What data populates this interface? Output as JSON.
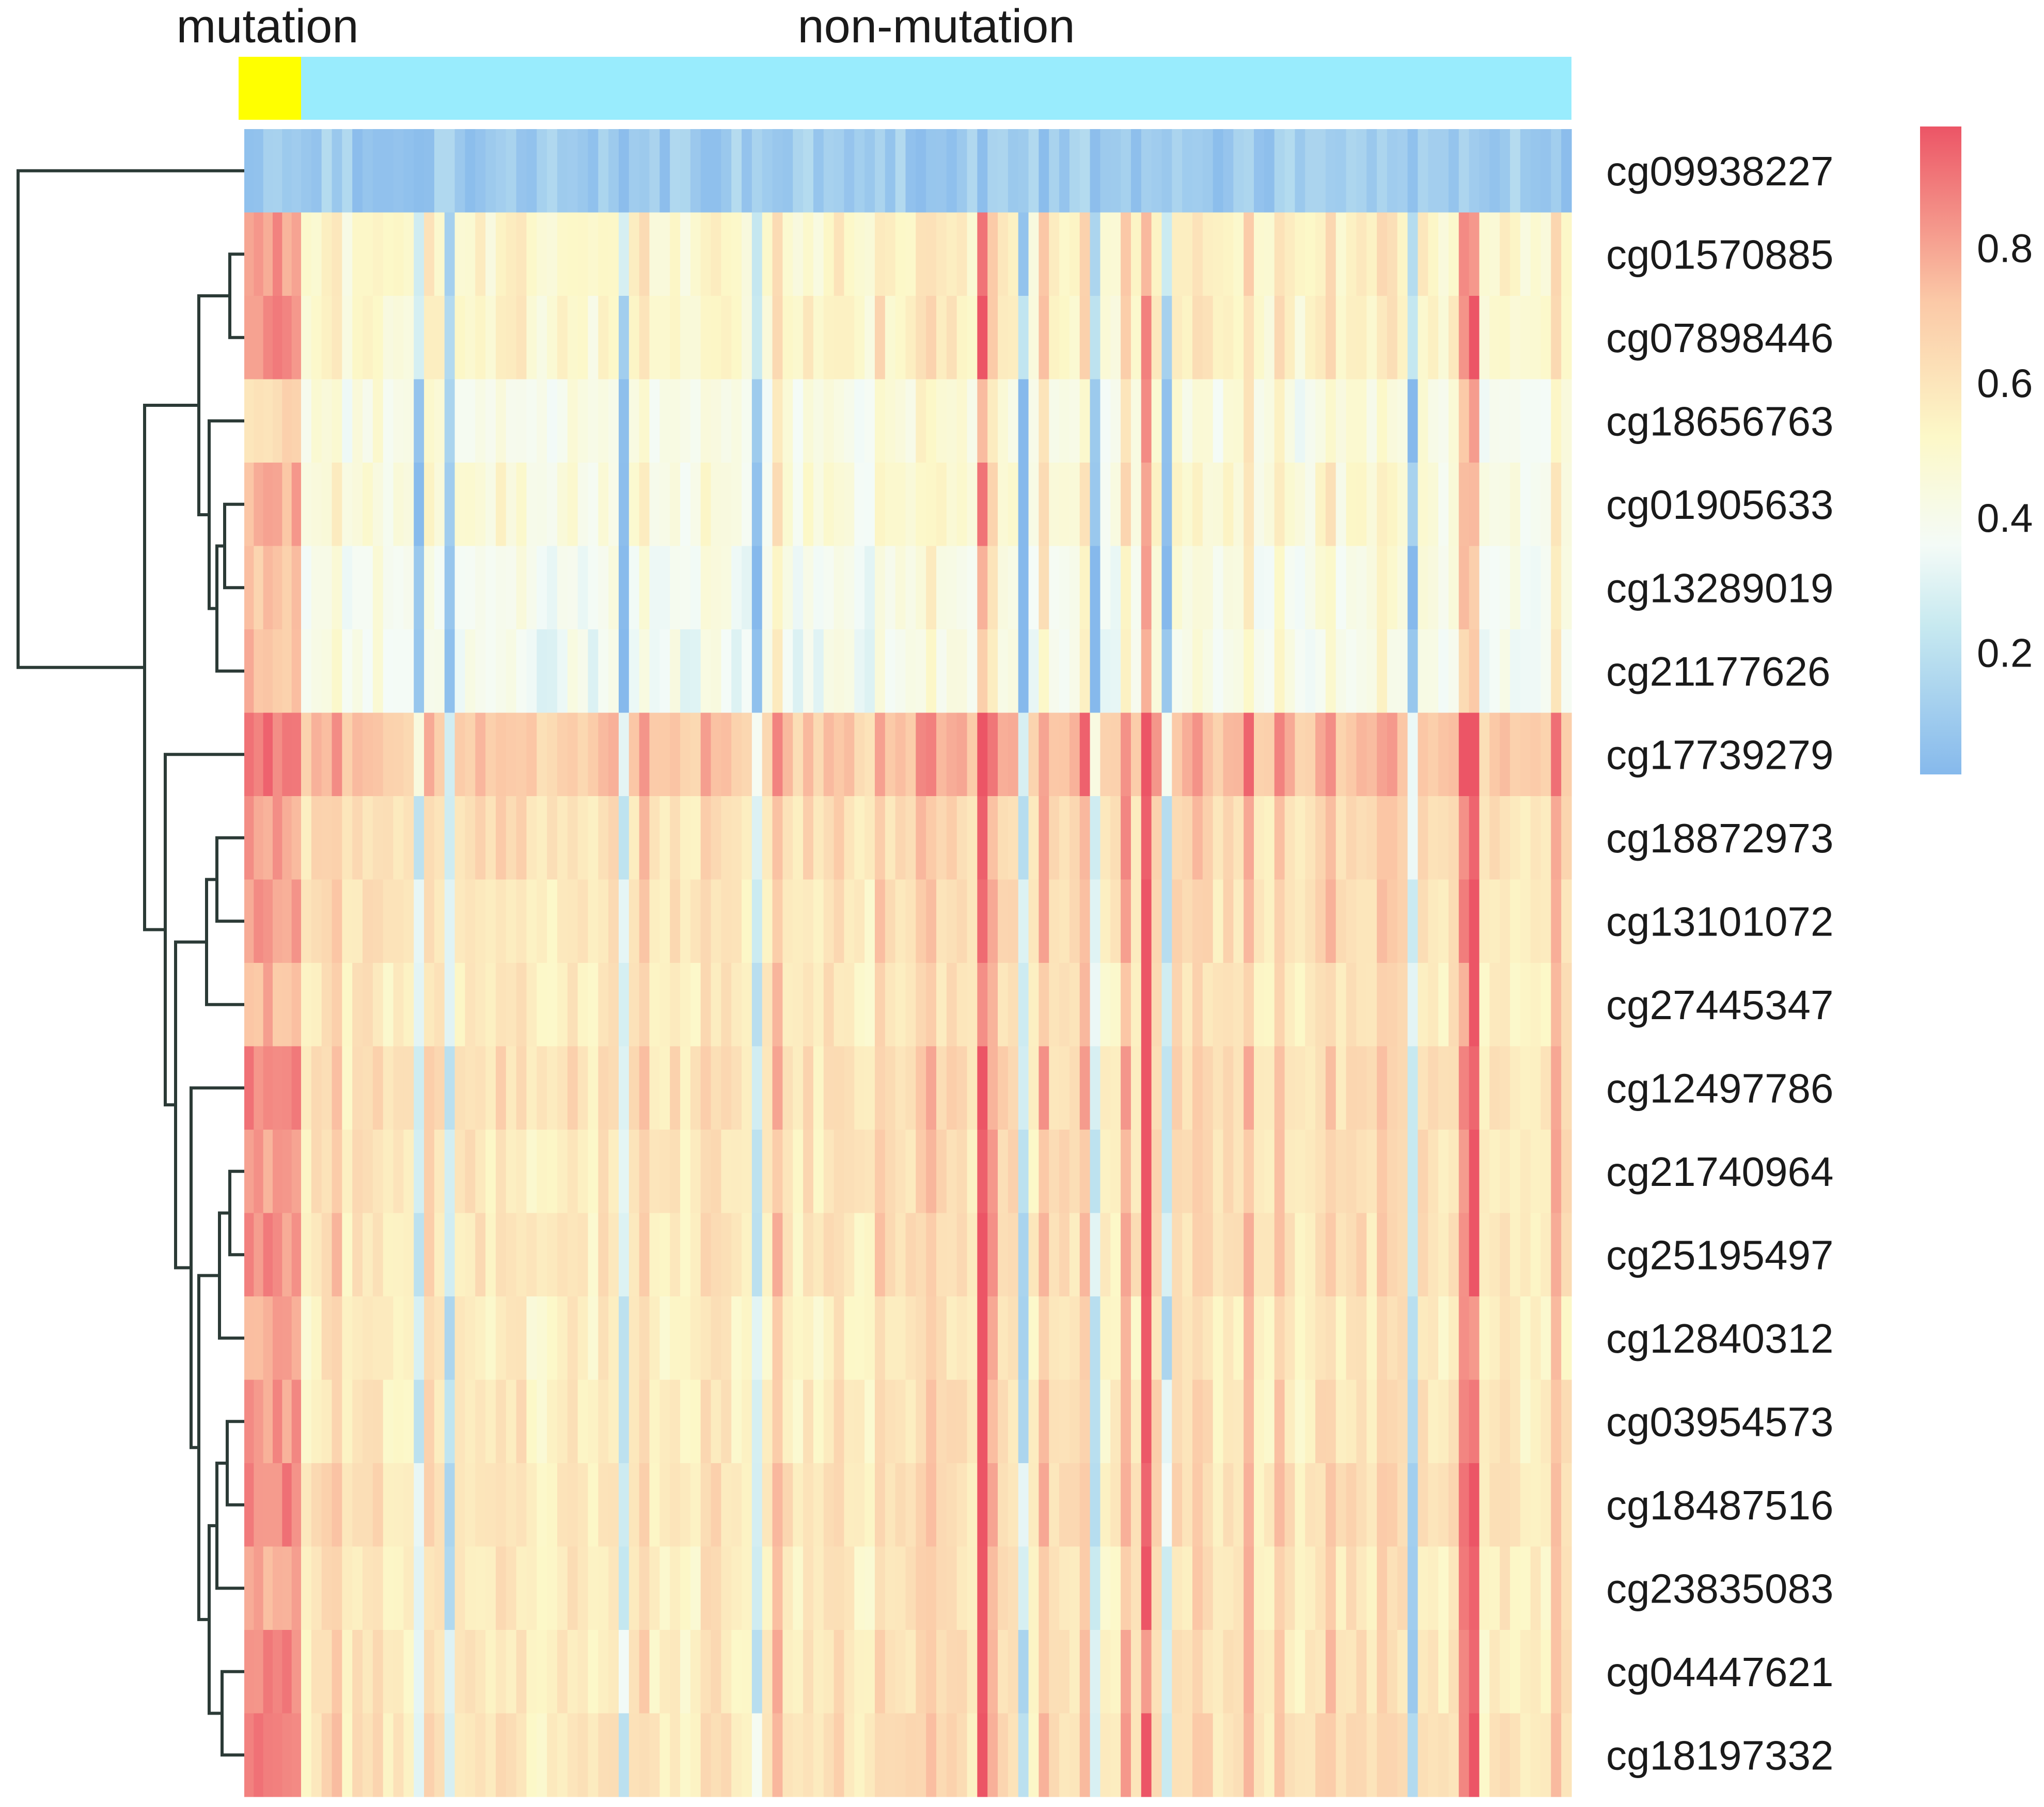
{
  "chart_data": {
    "type": "heatmap",
    "title": "",
    "xlabel": "",
    "ylabel": "",
    "column_groups": [
      {
        "name": "mutation",
        "count": 6,
        "color": "#ffff00"
      },
      {
        "name": "non-mutation",
        "count": 124,
        "color": "#99ecfd"
      }
    ],
    "rows": [
      "cg09938227",
      "cg01570885",
      "cg07898446",
      "cg18656763",
      "cg01905633",
      "cg13289019",
      "cg21177626",
      "cg17739279",
      "cg18872973",
      "cg13101072",
      "cg27445347",
      "cg12497786",
      "cg21740964",
      "cg25195497",
      "cg12840312",
      "cg03954573",
      "cg18487516",
      "cg23835083",
      "cg04447621",
      "cg18197332"
    ],
    "row_mean_values": [
      0.08,
      0.52,
      0.52,
      0.42,
      0.45,
      0.4,
      0.38,
      0.72,
      0.62,
      0.6,
      0.58,
      0.62,
      0.6,
      0.6,
      0.56,
      0.58,
      0.6,
      0.57,
      0.58,
      0.6
    ],
    "mutation_mean_values": [
      0.08,
      0.82,
      0.84,
      0.65,
      0.78,
      0.7,
      0.74,
      0.9,
      0.8,
      0.82,
      0.76,
      0.86,
      0.82,
      0.84,
      0.8,
      0.82,
      0.86,
      0.78,
      0.86,
      0.88
    ],
    "colorbar": {
      "ticks": [
        0.2,
        0.4,
        0.6,
        0.8
      ],
      "min": 0.02,
      "max": 0.98,
      "stops": [
        {
          "value": 0.02,
          "color": "#86b9ec"
        },
        {
          "value": 0.24,
          "color": "#c7e9f0"
        },
        {
          "value": 0.36,
          "color": "#f4fbf7"
        },
        {
          "value": 0.52,
          "color": "#fcf8c8"
        },
        {
          "value": 0.72,
          "color": "#fbc9a7"
        },
        {
          "value": 0.98,
          "color": "#ec5566"
        }
      ]
    },
    "dendrogram": "row clustering tree shown on left"
  }
}
